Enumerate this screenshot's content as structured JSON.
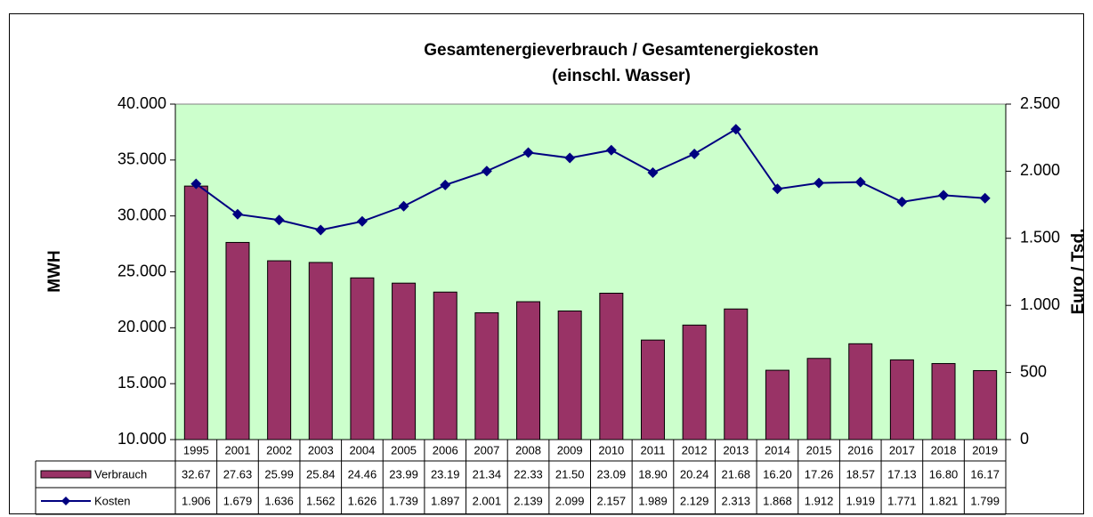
{
  "chart_data": {
    "type": "bar-line",
    "title": "Gesamtenergieverbrauch / Gesamtenergiekosten",
    "subtitle": "(einschl. Wasser)",
    "ylabel": "MWH",
    "y2label": "Euro / Tsd.",
    "categories": [
      "1995",
      "2001",
      "2002",
      "2003",
      "2004",
      "2005",
      "2006",
      "2007",
      "2008",
      "2009",
      "2010",
      "2011",
      "2012",
      "2013",
      "2014",
      "2015",
      "2016",
      "2017",
      "2018",
      "2019"
    ],
    "series": [
      {
        "name": "Verbrauch",
        "color": "#993366",
        "kind": "bar",
        "values": [
          32670,
          27630,
          25990,
          25840,
          24460,
          23990,
          23190,
          21340,
          22330,
          21500,
          23090,
          18900,
          20240,
          21680,
          16200,
          17260,
          18570,
          17130,
          16800,
          16170
        ],
        "value_labels": [
          "32.67",
          "27.63",
          "25.99",
          "25.84",
          "24.46",
          "23.99",
          "23.19",
          "21.34",
          "22.33",
          "21.50",
          "23.09",
          "18.90",
          "20.24",
          "21.68",
          "16.20",
          "17.26",
          "18.57",
          "17.13",
          "16.80",
          "16.17"
        ]
      },
      {
        "name": "Kosten",
        "color": "#000080",
        "kind": "line",
        "axis": "y2",
        "values": [
          1906,
          1679,
          1636,
          1562,
          1626,
          1739,
          1897,
          2001,
          2139,
          2099,
          2157,
          1989,
          2129,
          2313,
          1868,
          1912,
          1919,
          1771,
          1821,
          1799
        ],
        "value_labels": [
          "1.906",
          "1.679",
          "1.636",
          "1.562",
          "1.626",
          "1.739",
          "1.897",
          "2.001",
          "2.139",
          "2.099",
          "2.157",
          "1.989",
          "2.129",
          "2.313",
          "1.868",
          "1.912",
          "1.919",
          "1.771",
          "1.821",
          "1.799"
        ]
      }
    ],
    "ylim": [
      10000,
      40000
    ],
    "yticks": [
      {
        "value": 10000,
        "label": "10.000"
      },
      {
        "value": 15000,
        "label": "15.000"
      },
      {
        "value": 20000,
        "label": "20.000"
      },
      {
        "value": 25000,
        "label": "25.000"
      },
      {
        "value": 30000,
        "label": "30.000"
      },
      {
        "value": 35000,
        "label": "35.000"
      },
      {
        "value": 40000,
        "label": "40.000"
      }
    ],
    "y2lim": [
      0,
      2500
    ],
    "y2ticks": [
      0,
      500,
      {
        "value": 1000,
        "label": "1.000"
      },
      {
        "value": 1500,
        "label": "1.500"
      },
      {
        "value": 2000,
        "label": "2.000"
      },
      {
        "value": 2500,
        "label": "2.500"
      }
    ],
    "plot_background": "#ccffcc"
  }
}
